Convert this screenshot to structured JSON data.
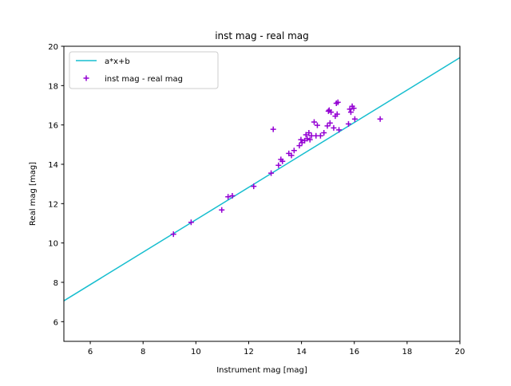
{
  "chart_data": {
    "type": "scatter",
    "title": "inst mag - real mag",
    "xlabel": "Instrument mag [mag]",
    "ylabel": "Real mag [mag]",
    "xlim": [
      5,
      20
    ],
    "ylim": [
      5,
      20
    ],
    "xticks": [
      6,
      8,
      10,
      12,
      14,
      16,
      18,
      20
    ],
    "yticks": [
      6,
      8,
      10,
      12,
      14,
      16,
      18,
      20
    ],
    "grid": false,
    "legend_position": "top-left",
    "series": [
      {
        "name": "a*x+b",
        "type": "line",
        "color": "#17becf",
        "x": [
          5,
          20
        ],
        "y": [
          7.06,
          19.42
        ]
      },
      {
        "name": "inst mag - real mag",
        "type": "scatter",
        "marker": "plus",
        "color": "#9400d3",
        "x": [
          9.15,
          9.82,
          10.98,
          11.22,
          11.38,
          12.19,
          12.85,
          12.93,
          13.13,
          13.22,
          13.28,
          13.52,
          13.62,
          13.72,
          13.92,
          13.98,
          14.02,
          14.12,
          14.17,
          14.22,
          14.28,
          14.32,
          14.38,
          14.48,
          14.55,
          14.6,
          14.72,
          14.85,
          14.98,
          15.02,
          15.05,
          15.08,
          15.12,
          15.22,
          15.28,
          15.32,
          15.35,
          15.38,
          15.42,
          15.78,
          15.83,
          15.87,
          15.92,
          15.98,
          16.02,
          16.98
        ],
        "y": [
          10.45,
          11.05,
          11.68,
          12.35,
          12.4,
          12.88,
          13.55,
          15.78,
          13.95,
          14.25,
          14.15,
          14.55,
          14.45,
          14.7,
          14.95,
          15.25,
          15.1,
          15.2,
          15.5,
          15.3,
          15.6,
          15.25,
          15.45,
          16.15,
          15.45,
          15.98,
          15.45,
          15.6,
          15.95,
          16.7,
          16.75,
          16.1,
          16.65,
          15.85,
          16.45,
          17.1,
          16.55,
          17.15,
          15.75,
          16.05,
          16.8,
          16.65,
          16.95,
          16.85,
          16.3,
          16.3
        ]
      }
    ]
  }
}
